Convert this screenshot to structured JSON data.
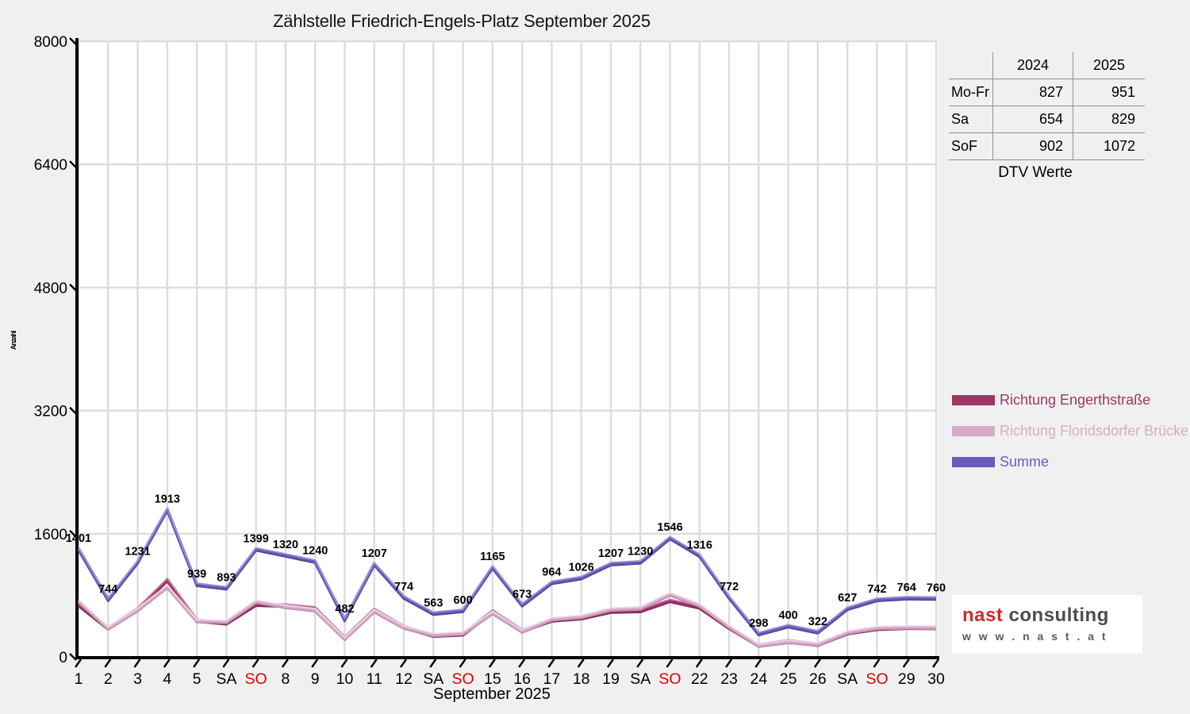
{
  "page": {
    "background": "#f0f0f0"
  },
  "chart_data": {
    "type": "line",
    "title": "Zählstelle Friedrich-Engels-Platz September 2025",
    "xlabel": "September 2025",
    "ylabel": "Anzahl",
    "ylim": [
      0,
      8000
    ],
    "yticks": [
      0,
      1600,
      3200,
      4800,
      6400,
      8000
    ],
    "x_tick_labels": [
      "1",
      "2",
      "3",
      "4",
      "5",
      "SA",
      "SO",
      "8",
      "9",
      "10",
      "11",
      "12",
      "SA",
      "SO",
      "15",
      "16",
      "17",
      "18",
      "19",
      "SA",
      "SO",
      "22",
      "23",
      "24",
      "25",
      "26",
      "SA",
      "SO",
      "29",
      "30"
    ],
    "sunday_label_color": "#dd0000",
    "grid": true,
    "legend_position": "right",
    "series": [
      {
        "name": "Richtung Engerthstraße",
        "color": "#a03668",
        "highlight": "#c77ca6",
        "shade": "#7d2750",
        "show_labels": false,
        "values": [
          676,
          372,
          620,
          1000,
          472,
          438,
          680,
          668,
          632,
          246,
          612,
          390,
          278,
          294,
          592,
          340,
          475,
          505,
          590,
          598,
          730,
          645,
          380,
          150,
          204,
          160,
          310,
          366,
          380,
          378
        ]
      },
      {
        "name": "Richtung Floridsdorfer Brücke",
        "color": "#d7abc8",
        "highlight": "#eedbe8",
        "shade": "#bd88ab",
        "show_labels": false,
        "values": [
          725,
          372,
          611,
          913,
          467,
          455,
          719,
          652,
          608,
          236,
          595,
          384,
          285,
          306,
          573,
          333,
          489,
          521,
          617,
          632,
          816,
          671,
          392,
          148,
          196,
          162,
          317,
          376,
          384,
          382
        ]
      },
      {
        "name": "Summe",
        "color": "#6b5bb8",
        "highlight": "#9f95da",
        "shade": "#4f4195",
        "show_labels": true,
        "values": [
          1401,
          744,
          1231,
          1913,
          939,
          893,
          1399,
          1320,
          1240,
          482,
          1207,
          774,
          563,
          600,
          1165,
          673,
          964,
          1026,
          1207,
          1230,
          1546,
          1316,
          772,
          298,
          400,
          322,
          627,
          742,
          764,
          760
        ]
      }
    ]
  },
  "stats_table": {
    "col_headers": [
      "2024",
      "2025"
    ],
    "rows": [
      {
        "label": "Mo-Fr",
        "y2024": "827",
        "y2025": "951"
      },
      {
        "label": "Sa",
        "y2024": "654",
        "y2025": "829"
      },
      {
        "label": "SoF",
        "y2024": "902",
        "y2025": "1072"
      }
    ],
    "caption": "DTV Werte"
  },
  "logo": {
    "brand": "nast",
    "brand2": "consulting",
    "url": "w w w . n a s t . a t",
    "brand_color": "#cf2b27",
    "brand2_color": "#4d4d4d",
    "url_color": "#5a5a5a"
  }
}
